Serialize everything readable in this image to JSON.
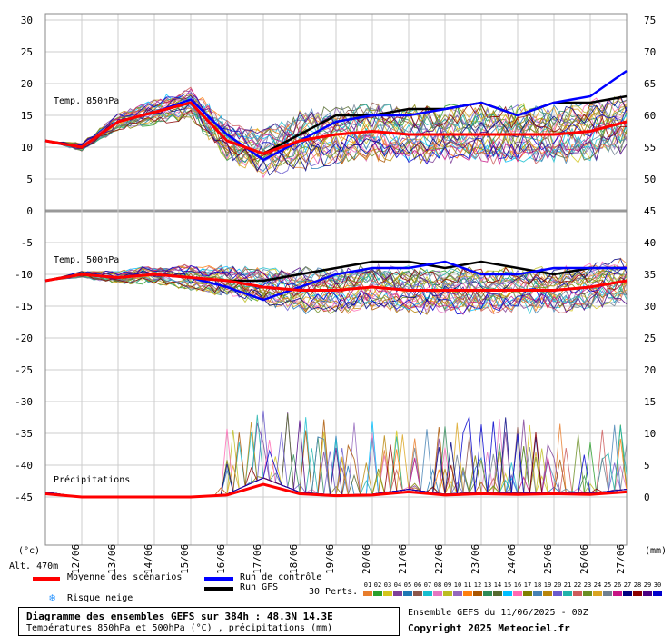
{
  "left_axis": {
    "ticks": [
      30,
      25,
      20,
      15,
      10,
      5,
      0,
      -5,
      -10,
      -15,
      -20,
      -25,
      -30,
      -35,
      -40,
      -45
    ],
    "unit_label": "(°c)"
  },
  "right_axis": {
    "ticks": [
      75,
      70,
      65,
      60,
      55,
      50,
      45,
      40,
      35,
      30,
      25,
      20,
      15,
      10,
      5,
      0
    ],
    "unit_label": "(mm)"
  },
  "x_axis": {
    "labels": [
      "12/06",
      "13/06",
      "14/06",
      "15/06",
      "16/06",
      "17/06",
      "18/06",
      "19/06",
      "20/06",
      "21/06",
      "22/06",
      "23/06",
      "24/06",
      "25/06",
      "26/06",
      "27/06"
    ]
  },
  "panel_labels": {
    "t850": "Temp. 850hPa",
    "t500": "Temp. 500hPa",
    "precip": "Précipitations"
  },
  "altitude": "Alt. 470m",
  "legend": {
    "mean": "Moyenne des scénarios",
    "control": "Run de contrôle",
    "gfs": "Run GFS",
    "snow": "Risque neige",
    "perts": "30 Perts.",
    "ensemble_info": "Ensemble GEFS du 11/06/2025 - 00Z",
    "copyright": "Copyright 2025 Meteociel.fr"
  },
  "title_box": {
    "title": "Diagramme des ensembles GEFS sur 384h : 48.3N 14.3E",
    "subtitle": "Températures 850hPa et 500hPa (°C) , précipitations (mm)"
  },
  "colors": {
    "mean": "#ff0000",
    "control": "#0000ff",
    "gfs": "#000000",
    "snow": "#3399ff"
  },
  "pert_numbers": [
    "01",
    "02",
    "03",
    "04",
    "05",
    "06",
    "07",
    "08",
    "09",
    "10",
    "11",
    "12",
    "13",
    "14",
    "15",
    "16",
    "17",
    "18",
    "19",
    "20",
    "21",
    "22",
    "23",
    "24",
    "25",
    "26",
    "27",
    "28",
    "29",
    "30"
  ],
  "pert_colors": [
    "#e87d2c",
    "#2ca02c",
    "#d4c61c",
    "#7f3f98",
    "#1f77b4",
    "#8c564b",
    "#17becf",
    "#e377c2",
    "#bcbd22",
    "#9467bd",
    "#ff7f0e",
    "#aa5500",
    "#2e8b57",
    "#556b2f",
    "#00bfff",
    "#ff69b4",
    "#808000",
    "#4682b4",
    "#b8860b",
    "#6a5acd",
    "#20b2aa",
    "#cd5c5c",
    "#6b8e23",
    "#daa520",
    "#708090",
    "#c71585",
    "#000080",
    "#8b0000",
    "#4b0082",
    "#0000cd"
  ],
  "chart_data": {
    "type": "line",
    "x": [
      "11/06",
      "12/06",
      "13/06",
      "14/06",
      "15/06",
      "16/06",
      "17/06",
      "18/06",
      "19/06",
      "20/06",
      "21/06",
      "22/06",
      "23/06",
      "24/06",
      "25/06",
      "26/06",
      "27/06"
    ],
    "series": [
      {
        "name": "Temp. 850hPa - Moyenne des scénarios",
        "values": [
          11,
          10,
          14,
          15.5,
          17,
          11,
          9,
          11,
          12,
          12.5,
          12,
          12,
          12,
          12,
          12,
          12.5,
          14
        ]
      },
      {
        "name": "Temp. 850hPa - Run de contrôle",
        "values": [
          11,
          10,
          14,
          15.5,
          17.5,
          12,
          8,
          11,
          14,
          15,
          15,
          16,
          17,
          15,
          17,
          18,
          22
        ]
      },
      {
        "name": "Temp. 850hPa - Run GFS",
        "values": [
          11,
          10,
          14,
          15.5,
          17,
          11,
          9,
          12,
          15,
          15,
          16,
          16,
          17,
          15,
          17,
          17,
          18
        ]
      },
      {
        "name": "Temp. 500hPa - Moyenne des scénarios",
        "values": [
          -11,
          -10,
          -10.5,
          -10,
          -10.5,
          -11,
          -12,
          -12.5,
          -12.5,
          -12,
          -12.5,
          -12.5,
          -12.5,
          -12.5,
          -12.5,
          -12,
          -11
        ]
      },
      {
        "name": "Temp. 500hPa - Run de contrôle",
        "values": [
          -11,
          -10,
          -10.5,
          -10,
          -10.5,
          -12,
          -14,
          -12,
          -10,
          -9,
          -9,
          -8,
          -10,
          -10,
          -9,
          -9,
          -9
        ]
      },
      {
        "name": "Temp. 500hPa - Run GFS",
        "values": [
          -11,
          -10,
          -10.5,
          -10,
          -10.5,
          -11,
          -11,
          -10,
          -9,
          -8,
          -8,
          -9,
          -8,
          -9,
          -10,
          -9,
          -9
        ]
      },
      {
        "name": "Précipitations - Moyenne des scénarios",
        "values": [
          0.5,
          0,
          0,
          0,
          0,
          0.3,
          2,
          0.5,
          0.2,
          0.3,
          0.8,
          0.3,
          0.5,
          0.4,
          0.5,
          0.4,
          0.8
        ]
      }
    ],
    "ylim_left": [
      -45,
      30
    ],
    "ylim_right": [
      0,
      75
    ],
    "grid": true
  }
}
